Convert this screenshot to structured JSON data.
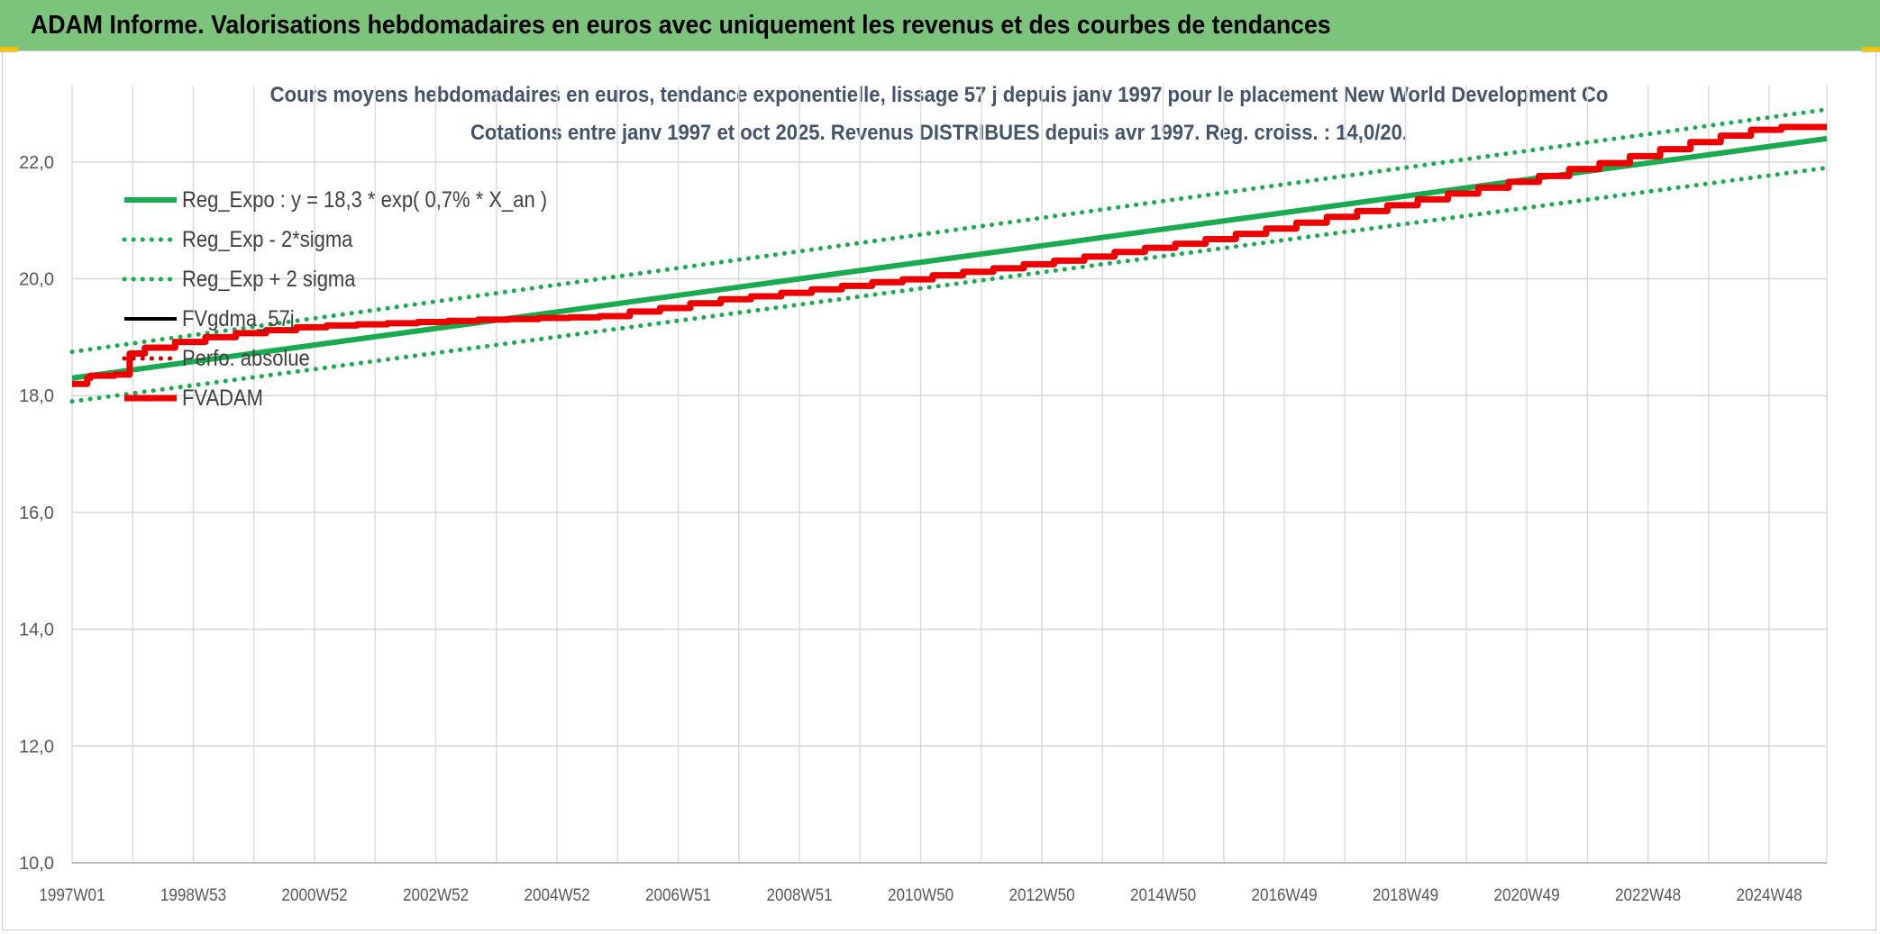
{
  "header": {
    "banner_title": "ADAM Informe. Valorisations hebdomadaires en euros avec uniquement les revenus et des courbes de tendances",
    "banner_color": "#7cc47c"
  },
  "chart_data": {
    "type": "line",
    "title": "Cours moyens hebdomadaires en euros, tendance exponentielle, lissage 57 j depuis janv 1997 pour le placement New World Development Co",
    "subtitle": "Cotations entre janv 1997 et oct 2025. Revenus DISTRIBUES depuis avr 1997. Reg. croiss. : 14,0/20.",
    "xlabel": "",
    "ylabel": "",
    "ylim": [
      10,
      23
    ],
    "xlim": [
      1997.0,
      2025.95
    ],
    "y_ticks": [
      "10,0",
      "12,0",
      "14,0",
      "16,0",
      "18,0",
      "20,0",
      "22,0"
    ],
    "y_tick_values": [
      10,
      12,
      14,
      16,
      18,
      20,
      22
    ],
    "x_tick_labels": [
      "1997W01",
      "1998W53",
      "2000W52",
      "2002W52",
      "2004W52",
      "2006W51",
      "2008W51",
      "2010W50",
      "2012W50",
      "2014W50",
      "2016W49",
      "2018W49",
      "2020W49",
      "2022W48",
      "2024W48"
    ],
    "x_tick_values": [
      1997.0,
      1999.0,
      2001.0,
      2003.0,
      2005.0,
      2007.0,
      2009.0,
      2011.0,
      2013.0,
      2015.0,
      2017.0,
      2019.0,
      2021.0,
      2023.0,
      2025.0
    ],
    "grid": true,
    "legend_position": "top-left",
    "series": [
      {
        "name": "Reg_Expo : y = 18,3 * exp( 0,7% *  X_an )",
        "style": "solid",
        "color": "#1aaa50",
        "x": [
          1997.0,
          2025.95
        ],
        "y": [
          18.3,
          22.4
        ]
      },
      {
        "name": "Reg_Exp - 2*sigma",
        "style": "dotted",
        "color": "#1aaa50",
        "x": [
          1997.0,
          2025.95
        ],
        "y": [
          17.9,
          21.9
        ]
      },
      {
        "name": "Reg_Exp + 2 sigma",
        "style": "dotted",
        "color": "#1aaa50",
        "x": [
          1997.0,
          2025.95
        ],
        "y": [
          18.75,
          22.9
        ]
      },
      {
        "name": "FVgdma_57j",
        "style": "solid",
        "color": "#000000",
        "x": [
          1997.0,
          1997.25,
          1997.3,
          1997.7,
          1997.95,
          1998.2,
          1998.7,
          1999.2,
          1999.7,
          2000.2,
          2000.7,
          2001.2,
          2001.7,
          2002.2,
          2002.7,
          2003.2,
          2003.7,
          2004.2,
          2004.7,
          2005.2,
          2005.7,
          2006.2,
          2006.7,
          2007.2,
          2007.7,
          2008.2,
          2008.7,
          2009.2,
          2009.7,
          2010.2,
          2010.7,
          2011.2,
          2011.7,
          2012.2,
          2012.7,
          2013.2,
          2013.7,
          2014.2,
          2014.7,
          2015.2,
          2015.7,
          2016.2,
          2016.7,
          2017.2,
          2017.7,
          2018.2,
          2018.7,
          2019.2,
          2019.7,
          2020.2,
          2020.7,
          2021.2,
          2021.7,
          2022.2,
          2022.7,
          2023.2,
          2023.7,
          2024.2,
          2024.7,
          2025.2,
          2025.95
        ],
        "y": [
          18.22,
          18.3,
          18.34,
          18.36,
          18.72,
          18.82,
          18.92,
          19.0,
          19.07,
          19.12,
          19.17,
          19.2,
          19.22,
          19.24,
          19.26,
          19.28,
          19.3,
          19.31,
          19.33,
          19.34,
          19.36,
          19.44,
          19.5,
          19.58,
          19.65,
          19.7,
          19.76,
          19.82,
          19.88,
          19.94,
          19.99,
          20.06,
          20.12,
          20.18,
          20.25,
          20.31,
          20.38,
          20.46,
          20.53,
          20.6,
          20.68,
          20.77,
          20.86,
          20.96,
          21.06,
          21.16,
          21.26,
          21.36,
          21.46,
          21.56,
          21.66,
          21.76,
          21.88,
          21.98,
          22.1,
          22.22,
          22.34,
          22.45,
          22.55,
          22.6,
          22.6
        ]
      },
      {
        "name": "Perfo. absolue",
        "style": "dotted",
        "color": "#cc0000",
        "x": [],
        "y": []
      },
      {
        "name": "FVADAM",
        "style": "solid",
        "color": "#ee0000",
        "x": [
          1997.0,
          1997.25,
          1997.3,
          1997.7,
          1997.95,
          1998.2,
          1998.7,
          1999.2,
          1999.7,
          2000.2,
          2000.7,
          2001.2,
          2001.7,
          2002.2,
          2002.7,
          2003.2,
          2003.7,
          2004.2,
          2004.7,
          2005.2,
          2005.7,
          2006.2,
          2006.7,
          2007.2,
          2007.7,
          2008.2,
          2008.7,
          2009.2,
          2009.7,
          2010.2,
          2010.7,
          2011.2,
          2011.7,
          2012.2,
          2012.7,
          2013.2,
          2013.7,
          2014.2,
          2014.7,
          2015.2,
          2015.7,
          2016.2,
          2016.7,
          2017.2,
          2017.7,
          2018.2,
          2018.7,
          2019.2,
          2019.7,
          2020.2,
          2020.7,
          2021.2,
          2021.7,
          2022.2,
          2022.7,
          2023.2,
          2023.7,
          2024.2,
          2024.7,
          2025.2,
          2025.95
        ],
        "y": [
          18.2,
          18.3,
          18.34,
          18.36,
          18.72,
          18.82,
          18.92,
          19.0,
          19.07,
          19.12,
          19.17,
          19.2,
          19.22,
          19.24,
          19.26,
          19.28,
          19.3,
          19.31,
          19.33,
          19.34,
          19.36,
          19.44,
          19.5,
          19.58,
          19.65,
          19.7,
          19.76,
          19.82,
          19.88,
          19.94,
          19.99,
          20.06,
          20.12,
          20.18,
          20.25,
          20.31,
          20.38,
          20.46,
          20.53,
          20.6,
          20.68,
          20.77,
          20.86,
          20.96,
          21.06,
          21.16,
          21.26,
          21.36,
          21.46,
          21.56,
          21.66,
          21.76,
          21.88,
          21.98,
          22.1,
          22.22,
          22.34,
          22.45,
          22.55,
          22.6,
          22.6
        ]
      }
    ]
  }
}
